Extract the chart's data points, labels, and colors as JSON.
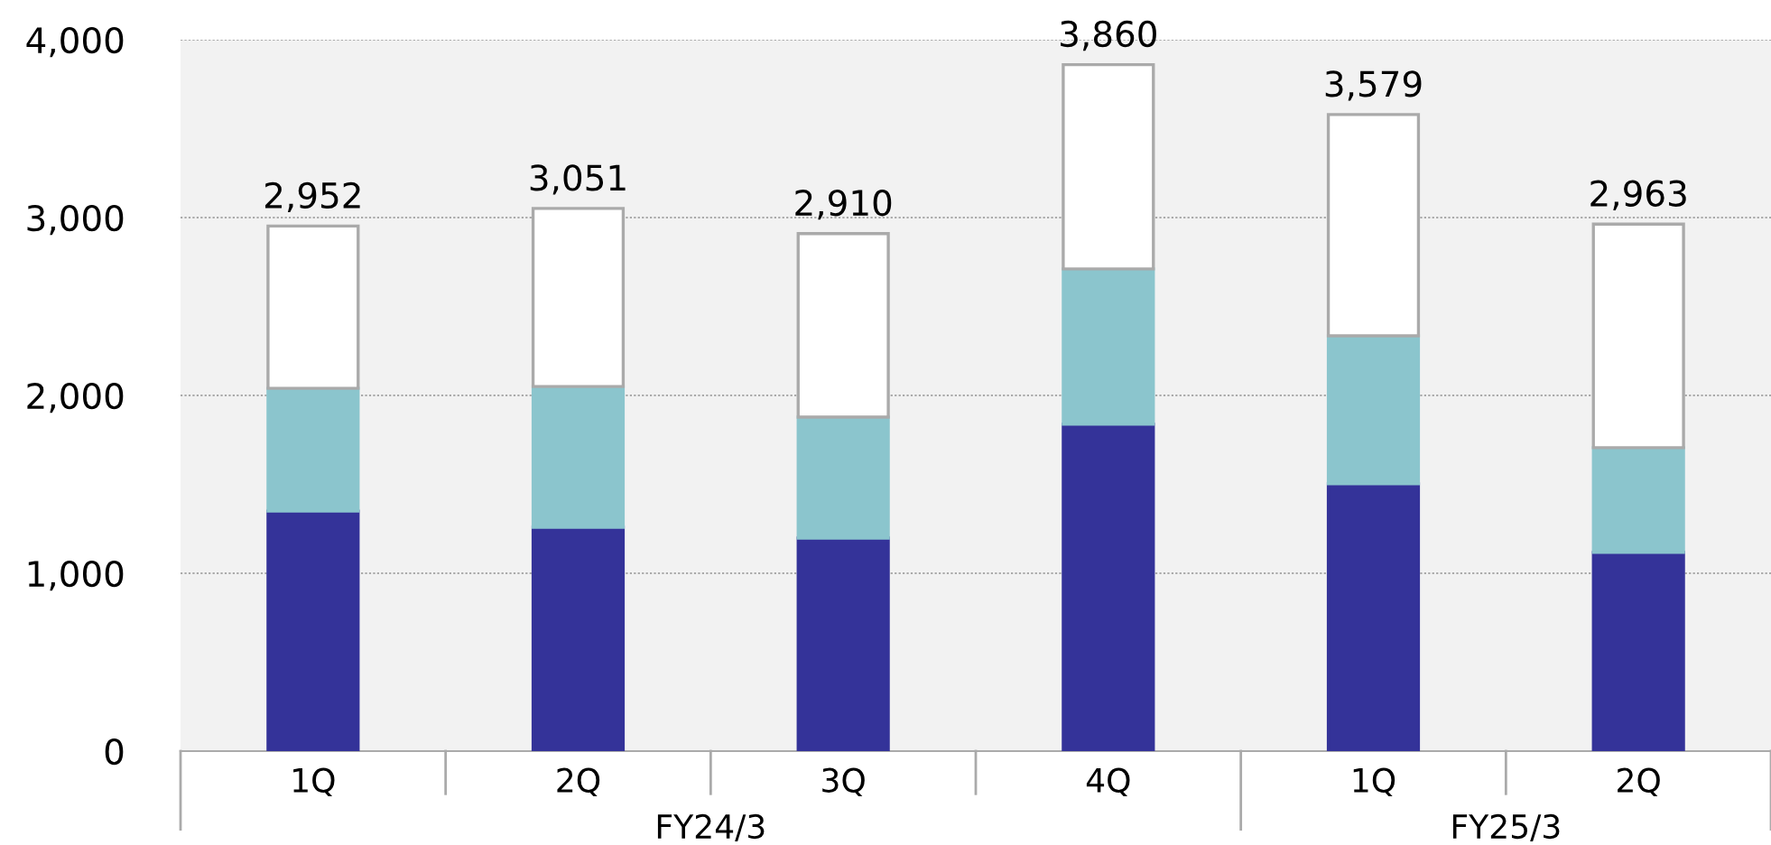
{
  "chart_data": {
    "type": "bar",
    "stacked": true,
    "categories": [
      "1Q",
      "2Q",
      "3Q",
      "4Q",
      "1Q",
      "2Q"
    ],
    "series": [
      {
        "color": "#343399",
        "values": [
          1350,
          1259,
          1198,
          1838,
          1503,
          1117
        ]
      },
      {
        "color": "#8bc5cd",
        "values": [
          690,
          791,
          680,
          873,
          832,
          589
        ]
      },
      {
        "color": "#ffffff",
        "values": [
          912,
          1001,
          1032,
          1149,
          1244,
          1257
        ]
      }
    ],
    "totals": [
      "2,952",
      "3,051",
      "2,910",
      "3,860",
      "3,579",
      "2,963"
    ],
    "annotations": [
      "FY24/3",
      "FY25/3"
    ],
    "ylim": [
      0,
      4000
    ],
    "yticks": [
      {
        "value": 0,
        "label": "0"
      },
      {
        "value": 1000,
        "label": "1,000"
      },
      {
        "value": 2000,
        "label": "2,000"
      },
      {
        "value": 3000,
        "label": "3,000"
      },
      {
        "value": 4000,
        "label": "4,000"
      }
    ],
    "grid": "y",
    "legend": false
  }
}
